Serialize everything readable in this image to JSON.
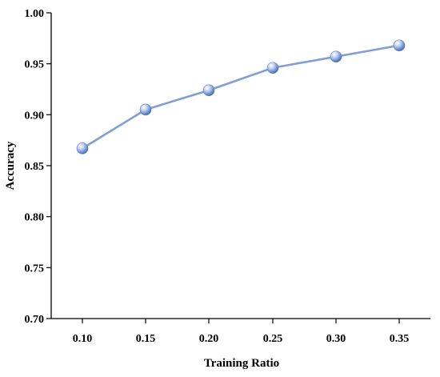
{
  "chart_data": {
    "type": "line",
    "xlabel": "Training Ratio",
    "ylabel": "Accuracy",
    "x": [
      0.1,
      0.15,
      0.2,
      0.25,
      0.3,
      0.35
    ],
    "x_tick_labels": [
      "0.10",
      "0.15",
      "0.20",
      "0.25",
      "0.30",
      "0.35"
    ],
    "y_tick_labels": [
      "0.70",
      "0.75",
      "0.80",
      "0.85",
      "0.90",
      "0.95",
      "1.00"
    ],
    "y_ticks": [
      0.7,
      0.75,
      0.8,
      0.85,
      0.9,
      0.95,
      1.0
    ],
    "ylim": [
      0.7,
      1.0
    ],
    "grid": false,
    "series": [
      {
        "values": [
          0.867,
          0.905,
          0.924,
          0.946,
          0.957,
          0.968
        ],
        "color": "#7f9fd6",
        "marker": "sphere"
      }
    ]
  }
}
